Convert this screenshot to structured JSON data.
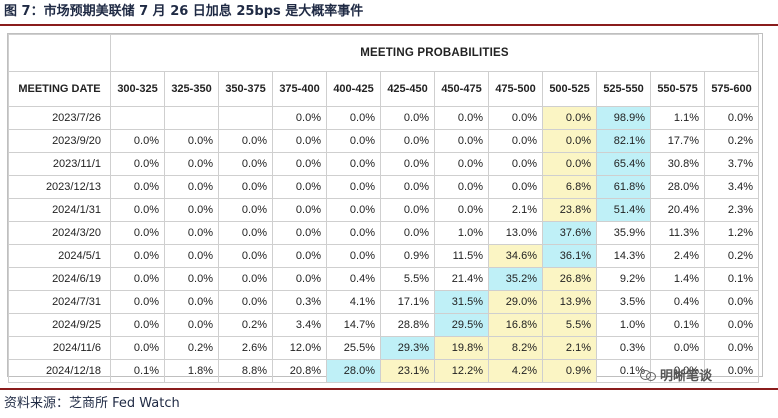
{
  "caption": "图 7：市场预期美联储 7 月 26 日加息 25bps 是大概率事件",
  "source": "资料来源：芝商所 Fed Watch",
  "watermark": "明晰笔谈",
  "table": {
    "title": "MEETING PROBABILITIES",
    "date_header": "MEETING DATE",
    "ranges": [
      "300-325",
      "325-350",
      "350-375",
      "375-400",
      "400-425",
      "425-450",
      "450-475",
      "475-500",
      "500-525",
      "525-550",
      "550-575",
      "575-600"
    ],
    "rows": [
      {
        "date": "2023/7/26",
        "values": [
          "",
          "",
          "",
          "0.0%",
          "0.0%",
          "0.0%",
          "0.0%",
          "0.0%",
          "0.0%",
          "98.9%",
          "1.1%",
          "0.0%"
        ],
        "hl": [
          [
            8,
            "y"
          ],
          [
            9,
            "b"
          ]
        ]
      },
      {
        "date": "2023/9/20",
        "values": [
          "0.0%",
          "0.0%",
          "0.0%",
          "0.0%",
          "0.0%",
          "0.0%",
          "0.0%",
          "0.0%",
          "0.0%",
          "82.1%",
          "17.7%",
          "0.2%"
        ],
        "hl": [
          [
            8,
            "y"
          ],
          [
            9,
            "b"
          ]
        ]
      },
      {
        "date": "2023/11/1",
        "values": [
          "0.0%",
          "0.0%",
          "0.0%",
          "0.0%",
          "0.0%",
          "0.0%",
          "0.0%",
          "0.0%",
          "0.0%",
          "65.4%",
          "30.8%",
          "3.7%"
        ],
        "hl": [
          [
            8,
            "y"
          ],
          [
            9,
            "b"
          ]
        ]
      },
      {
        "date": "2023/12/13",
        "values": [
          "0.0%",
          "0.0%",
          "0.0%",
          "0.0%",
          "0.0%",
          "0.0%",
          "0.0%",
          "0.0%",
          "6.8%",
          "61.8%",
          "28.0%",
          "3.4%"
        ],
        "hl": [
          [
            8,
            "y"
          ],
          [
            9,
            "b"
          ]
        ]
      },
      {
        "date": "2024/1/31",
        "values": [
          "0.0%",
          "0.0%",
          "0.0%",
          "0.0%",
          "0.0%",
          "0.0%",
          "0.0%",
          "2.1%",
          "23.8%",
          "51.4%",
          "20.4%",
          "2.3%"
        ],
        "hl": [
          [
            8,
            "y"
          ],
          [
            9,
            "b"
          ]
        ]
      },
      {
        "date": "2024/3/20",
        "values": [
          "0.0%",
          "0.0%",
          "0.0%",
          "0.0%",
          "0.0%",
          "0.0%",
          "1.0%",
          "13.0%",
          "37.6%",
          "35.9%",
          "11.3%",
          "1.2%"
        ],
        "hl": [
          [
            8,
            "b"
          ]
        ]
      },
      {
        "date": "2024/5/1",
        "values": [
          "0.0%",
          "0.0%",
          "0.0%",
          "0.0%",
          "0.0%",
          "0.9%",
          "11.5%",
          "34.6%",
          "36.1%",
          "14.3%",
          "2.4%",
          "0.2%"
        ],
        "hl": [
          [
            7,
            "y"
          ],
          [
            8,
            "b"
          ]
        ]
      },
      {
        "date": "2024/6/19",
        "values": [
          "0.0%",
          "0.0%",
          "0.0%",
          "0.0%",
          "0.4%",
          "5.5%",
          "21.4%",
          "35.2%",
          "26.8%",
          "9.2%",
          "1.4%",
          "0.1%"
        ],
        "hl": [
          [
            7,
            "b"
          ],
          [
            8,
            "y"
          ]
        ]
      },
      {
        "date": "2024/7/31",
        "values": [
          "0.0%",
          "0.0%",
          "0.0%",
          "0.3%",
          "4.1%",
          "17.1%",
          "31.5%",
          "29.0%",
          "13.9%",
          "3.5%",
          "0.4%",
          "0.0%"
        ],
        "hl": [
          [
            6,
            "b"
          ],
          [
            7,
            "y"
          ],
          [
            8,
            "y"
          ]
        ]
      },
      {
        "date": "2024/9/25",
        "values": [
          "0.0%",
          "0.0%",
          "0.2%",
          "3.4%",
          "14.7%",
          "28.8%",
          "29.5%",
          "16.8%",
          "5.5%",
          "1.0%",
          "0.1%",
          "0.0%"
        ],
        "hl": [
          [
            6,
            "b"
          ],
          [
            7,
            "y"
          ],
          [
            8,
            "y"
          ]
        ]
      },
      {
        "date": "2024/11/6",
        "values": [
          "0.0%",
          "0.2%",
          "2.6%",
          "12.0%",
          "25.5%",
          "29.3%",
          "19.8%",
          "8.2%",
          "2.1%",
          "0.3%",
          "0.0%",
          "0.0%"
        ],
        "hl": [
          [
            5,
            "b"
          ],
          [
            6,
            "y"
          ],
          [
            7,
            "y"
          ],
          [
            8,
            "y"
          ]
        ]
      },
      {
        "date": "2024/12/18",
        "values": [
          "0.1%",
          "1.8%",
          "8.8%",
          "20.8%",
          "28.0%",
          "23.1%",
          "12.2%",
          "4.2%",
          "0.9%",
          "0.1%",
          "0.0%",
          "0.0%"
        ],
        "hl": [
          [
            4,
            "b"
          ],
          [
            5,
            "y"
          ],
          [
            6,
            "y"
          ],
          [
            7,
            "y"
          ],
          [
            8,
            "y"
          ]
        ]
      }
    ]
  }
}
